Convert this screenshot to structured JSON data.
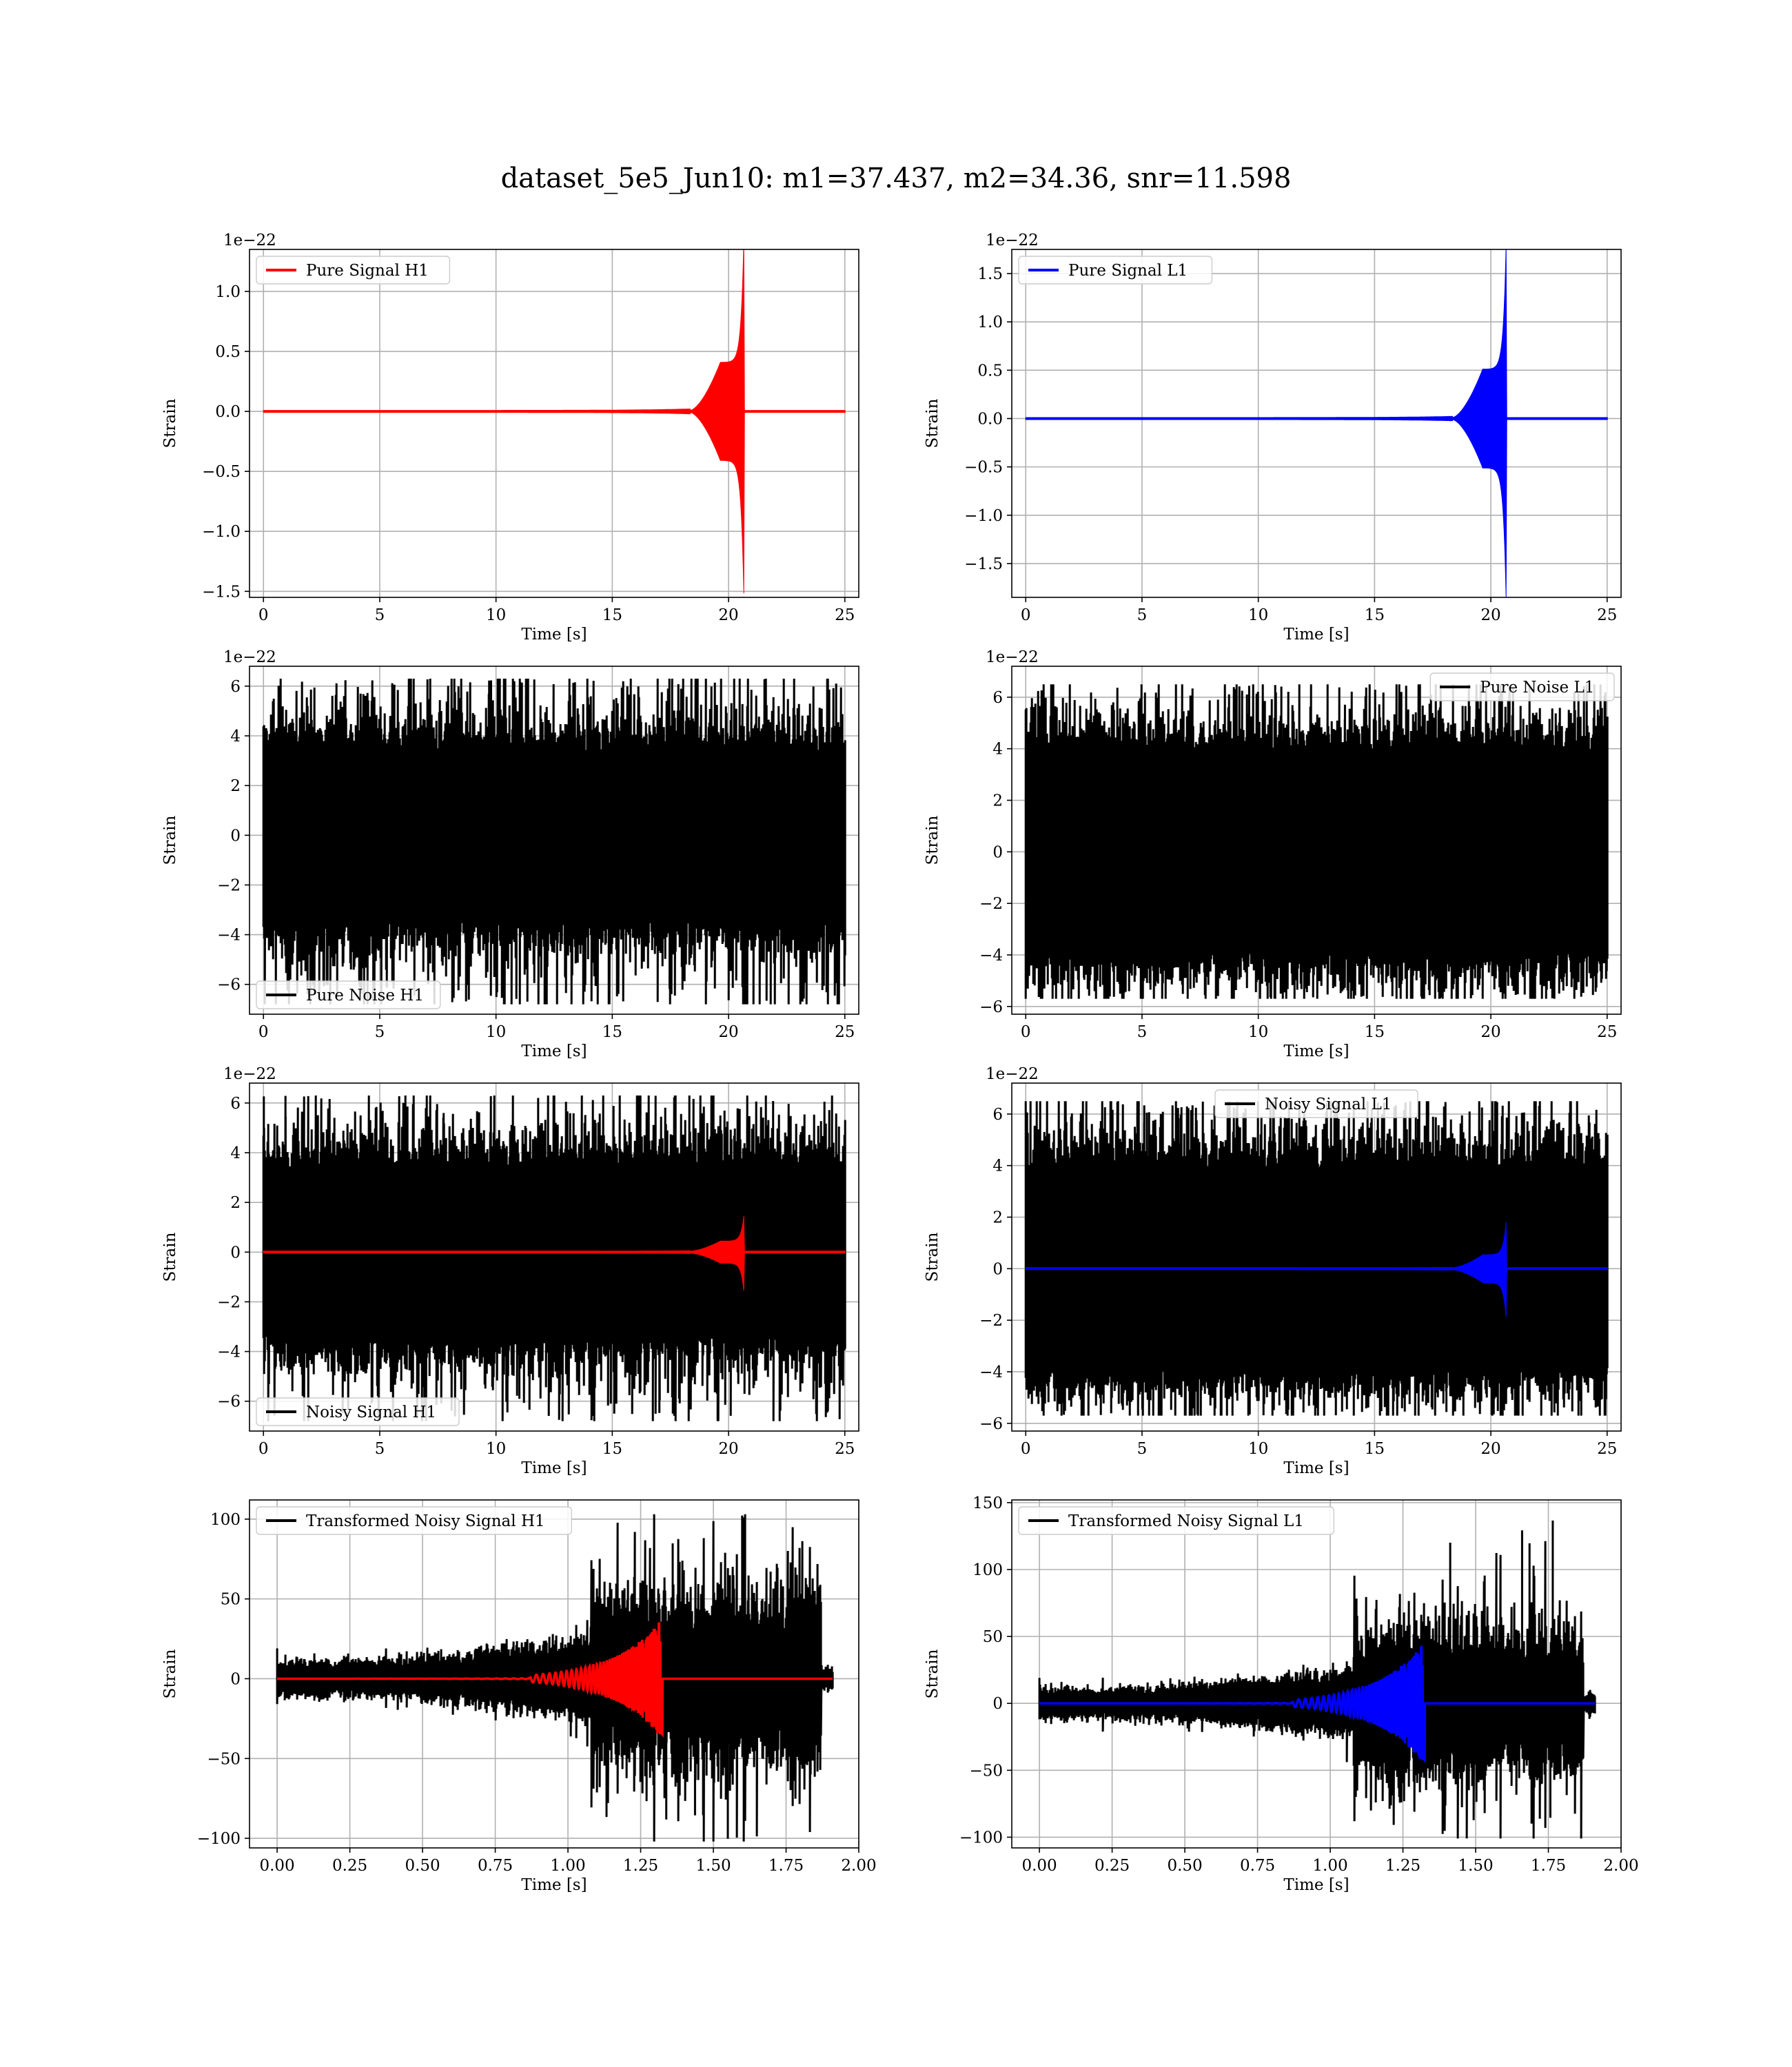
{
  "figure": {
    "title": "dataset_5e5_Jun10: m1=37.437, m2=34.36, snr=11.598"
  },
  "chart_data": [
    {
      "type": "line",
      "id": "pure-signal-h1",
      "xlabel": "Time [s]",
      "ylabel": "Strain",
      "offset_text": "1e−22",
      "xlim": [
        -0.6,
        25.6
      ],
      "ylim": [
        -1.55,
        1.35
      ],
      "xticks": [
        0,
        5,
        10,
        15,
        20,
        25
      ],
      "xtick_labels": [
        "0",
        "5",
        "10",
        "15",
        "20",
        "25"
      ],
      "yticks": [
        -1.5,
        -1.0,
        -0.5,
        0.0,
        0.5,
        1.0
      ],
      "ytick_labels": [
        "−1.5",
        "−1.0",
        "−0.5",
        "0.0",
        "0.5",
        "1.0"
      ],
      "grid": true,
      "legend_position": "upper-left",
      "series": [
        {
          "name": "Pure Signal H1",
          "color": "#ff0000",
          "kind": "chirp",
          "x_start": 0,
          "x_end": 25,
          "t_merge": 20.65,
          "peak_max": 1.35,
          "peak_min": -1.44,
          "plateau": 0.4
        }
      ]
    },
    {
      "type": "line",
      "id": "pure-signal-l1",
      "xlabel": "Time [s]",
      "ylabel": "Strain",
      "offset_text": "1e−22",
      "xlim": [
        -0.6,
        25.6
      ],
      "ylim": [
        -1.85,
        1.75
      ],
      "xticks": [
        0,
        5,
        10,
        15,
        20,
        25
      ],
      "xtick_labels": [
        "0",
        "5",
        "10",
        "15",
        "20",
        "25"
      ],
      "yticks": [
        -1.5,
        -1.0,
        -0.5,
        0.0,
        0.5,
        1.0,
        1.5
      ],
      "ytick_labels": [
        "−1.5",
        "−1.0",
        "−0.5",
        "0.0",
        "0.5",
        "1.0",
        "1.5"
      ],
      "grid": true,
      "legend_position": "upper-left",
      "series": [
        {
          "name": "Pure Signal L1",
          "color": "#0000ff",
          "kind": "chirp",
          "x_start": 0,
          "x_end": 25,
          "t_merge": 20.65,
          "peak_max": 1.7,
          "peak_min": -1.76,
          "plateau": 0.5
        }
      ]
    },
    {
      "type": "line",
      "id": "pure-noise-h1",
      "xlabel": "Time [s]",
      "ylabel": "Strain",
      "offset_text": "1e−22",
      "xlim": [
        -0.6,
        25.6
      ],
      "ylim": [
        -7.2,
        6.8
      ],
      "xticks": [
        0,
        5,
        10,
        15,
        20,
        25
      ],
      "xtick_labels": [
        "0",
        "5",
        "10",
        "15",
        "20",
        "25"
      ],
      "yticks": [
        -6,
        -4,
        -2,
        0,
        2,
        4,
        6
      ],
      "ytick_labels": [
        "−6",
        "−4",
        "−2",
        "0",
        "2",
        "4",
        "6"
      ],
      "grid": true,
      "legend_position": "lower-left",
      "series": [
        {
          "name": "Pure Noise H1",
          "color": "#000000",
          "kind": "noise",
          "x_start": 0,
          "x_end": 25,
          "max": 6.3,
          "min": -6.8,
          "band": 3.3
        }
      ]
    },
    {
      "type": "line",
      "id": "pure-noise-l1",
      "xlabel": "Time [s]",
      "ylabel": "Strain",
      "offset_text": "1e−22",
      "xlim": [
        -0.6,
        25.6
      ],
      "ylim": [
        -6.3,
        7.2
      ],
      "xticks": [
        0,
        5,
        10,
        15,
        20,
        25
      ],
      "xtick_labels": [
        "0",
        "5",
        "10",
        "15",
        "20",
        "25"
      ],
      "yticks": [
        -6,
        -4,
        -2,
        0,
        2,
        4,
        6
      ],
      "ytick_labels": [
        "−6",
        "−4",
        "−2",
        "0",
        "2",
        "4",
        "6"
      ],
      "grid": true,
      "legend_position": "upper-right",
      "series": [
        {
          "name": "Pure Noise L1",
          "color": "#000000",
          "kind": "noise",
          "x_start": 0,
          "x_end": 25,
          "max": 6.5,
          "min": -5.7,
          "band": 3.8
        }
      ]
    },
    {
      "type": "line",
      "id": "noisy-signal-h1",
      "xlabel": "Time [s]",
      "ylabel": "Strain",
      "offset_text": "1e−22",
      "xlim": [
        -0.6,
        25.6
      ],
      "ylim": [
        -7.2,
        6.8
      ],
      "xticks": [
        0,
        5,
        10,
        15,
        20,
        25
      ],
      "xtick_labels": [
        "0",
        "5",
        "10",
        "15",
        "20",
        "25"
      ],
      "yticks": [
        -6,
        -4,
        -2,
        0,
        2,
        4,
        6
      ],
      "ytick_labels": [
        "−6",
        "−4",
        "−2",
        "0",
        "2",
        "4",
        "6"
      ],
      "grid": true,
      "legend_position": "lower-left",
      "series": [
        {
          "name": "Noisy Signal H1",
          "color": "#000000",
          "kind": "noise",
          "x_start": 0,
          "x_end": 25,
          "max": 6.3,
          "min": -6.8,
          "band": 3.3
        },
        {
          "name": "",
          "color": "#ff0000",
          "kind": "chirp",
          "x_start": 0,
          "x_end": 25,
          "t_merge": 20.65,
          "peak_max": 1.35,
          "peak_min": -1.44,
          "plateau": 0.4
        }
      ]
    },
    {
      "type": "line",
      "id": "noisy-signal-l1",
      "xlabel": "Time [s]",
      "ylabel": "Strain",
      "offset_text": "1e−22",
      "xlim": [
        -0.6,
        25.6
      ],
      "ylim": [
        -6.3,
        7.2
      ],
      "xticks": [
        0,
        5,
        10,
        15,
        20,
        25
      ],
      "xtick_labels": [
        "0",
        "5",
        "10",
        "15",
        "20",
        "25"
      ],
      "yticks": [
        -6,
        -4,
        -2,
        0,
        2,
        4,
        6
      ],
      "ytick_labels": [
        "−6",
        "−4",
        "−2",
        "0",
        "2",
        "4",
        "6"
      ],
      "grid": true,
      "legend_position": "upper-center",
      "series": [
        {
          "name": "Noisy Signal L1",
          "color": "#000000",
          "kind": "noise",
          "x_start": 0,
          "x_end": 25,
          "max": 6.5,
          "min": -5.7,
          "band": 3.8
        },
        {
          "name": "",
          "color": "#0000ff",
          "kind": "chirp",
          "x_start": 0,
          "x_end": 25,
          "t_merge": 20.65,
          "peak_max": 1.7,
          "peak_min": -1.76,
          "plateau": 0.5
        }
      ]
    },
    {
      "type": "line",
      "id": "transformed-noisy-signal-h1",
      "xlabel": "Time [s]",
      "ylabel": "Strain",
      "offset_text": "",
      "xlim": [
        -0.095,
        2.0
      ],
      "ylim": [
        -106,
        112
      ],
      "xticks": [
        0.0,
        0.25,
        0.5,
        0.75,
        1.0,
        1.25,
        1.5,
        1.75,
        2.0
      ],
      "xtick_labels": [
        "0.00",
        "0.25",
        "0.50",
        "0.75",
        "1.00",
        "1.25",
        "1.50",
        "1.75",
        "2.00"
      ],
      "yticks": [
        -100,
        -50,
        0,
        50,
        100
      ],
      "ytick_labels": [
        "−100",
        "−50",
        "0",
        "50",
        "100"
      ],
      "grid": true,
      "legend_position": "upper-left",
      "series": [
        {
          "name": "Transformed Noisy Signal H1",
          "color": "#000000",
          "kind": "tnoise",
          "x_start": 0,
          "x_end": 1.91,
          "max": 103,
          "min": -102,
          "knee": 1.08,
          "cut": 1.87
        },
        {
          "name": "",
          "color": "#ff0000",
          "kind": "tchirp",
          "x_start": 0,
          "x_end": 1.91,
          "t_merge": 1.32,
          "peak_max": 37,
          "peak_min": -37
        }
      ]
    },
    {
      "type": "line",
      "id": "transformed-noisy-signal-l1",
      "xlabel": "Time [s]",
      "ylabel": "Strain",
      "offset_text": "",
      "xlim": [
        -0.095,
        2.0
      ],
      "ylim": [
        -108,
        152
      ],
      "xticks": [
        0.0,
        0.25,
        0.5,
        0.75,
        1.0,
        1.25,
        1.5,
        1.75,
        2.0
      ],
      "xtick_labels": [
        "0.00",
        "0.25",
        "0.50",
        "0.75",
        "1.00",
        "1.25",
        "1.50",
        "1.75",
        "2.00"
      ],
      "yticks": [
        -100,
        -50,
        0,
        50,
        100,
        150
      ],
      "ytick_labels": [
        "−100",
        "−50",
        "0",
        "50",
        "100",
        "150"
      ],
      "grid": true,
      "legend_position": "upper-left",
      "series": [
        {
          "name": "Transformed Noisy Signal L1",
          "color": "#000000",
          "kind": "tnoise",
          "x_start": 0,
          "x_end": 1.91,
          "max": 142,
          "min": -101,
          "knee": 1.08,
          "cut": 1.87
        },
        {
          "name": "",
          "color": "#0000ff",
          "kind": "tchirp",
          "x_start": 0,
          "x_end": 1.91,
          "t_merge": 1.32,
          "peak_max": 45,
          "peak_min": -45
        }
      ]
    }
  ]
}
